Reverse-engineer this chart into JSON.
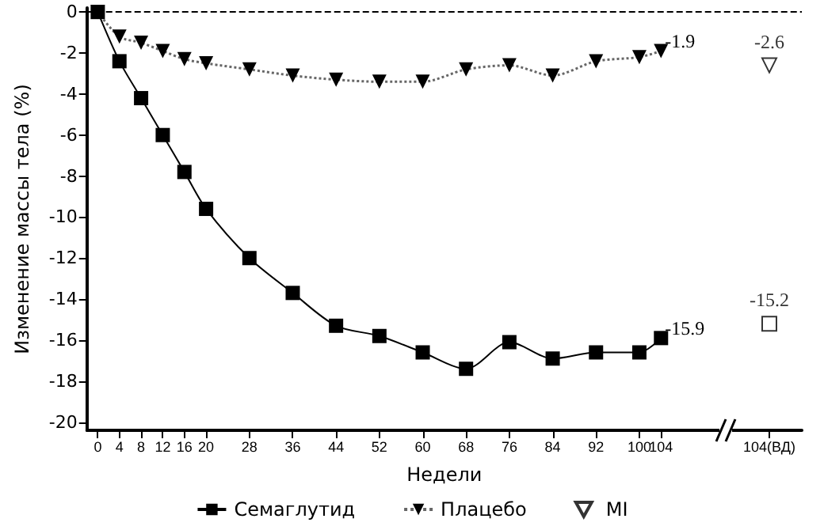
{
  "chart_data": {
    "type": "line",
    "xlabel": "Недели",
    "ylabel": "Изменение массы тела (%)",
    "categories": [
      "0",
      "4",
      "8",
      "12",
      "16",
      "20",
      null,
      "28",
      null,
      "36",
      null,
      "44",
      null,
      "52",
      null,
      "60",
      null,
      "68",
      null,
      "76",
      null,
      "84",
      null,
      "92",
      null,
      "100",
      "104",
      null,
      null,
      null,
      null,
      "104(ВД)",
      null
    ],
    "series": [
      {
        "name": "Семаглутид",
        "color": "#000000",
        "marker": "square",
        "line_style": "solid",
        "values": [
          0,
          -2.4,
          -4.2,
          -6.0,
          -7.8,
          -9.6,
          null,
          -12.0,
          null,
          -13.7,
          null,
          -15.3,
          null,
          -15.8,
          null,
          -16.6,
          null,
          -17.4,
          null,
          -16.1,
          null,
          -16.9,
          null,
          -16.6,
          null,
          -16.6,
          -15.9,
          null,
          null,
          null,
          null,
          null,
          null
        ],
        "value_labels": [
          null,
          null,
          null,
          null,
          null,
          null,
          null,
          null,
          null,
          null,
          null,
          null,
          null,
          null,
          null,
          null,
          null,
          null,
          null,
          null,
          null,
          null,
          null,
          null,
          null,
          null,
          "-15.9",
          null,
          null,
          null,
          null,
          null,
          null
        ]
      },
      {
        "name": "Плацебо",
        "color": "#000000",
        "marker": "triangle",
        "line_style": "dotted",
        "values": [
          0,
          -1.2,
          -1.5,
          -1.9,
          -2.3,
          -2.5,
          null,
          -2.8,
          null,
          -3.1,
          null,
          -3.3,
          null,
          -3.4,
          null,
          -3.4,
          null,
          -2.8,
          null,
          -2.6,
          null,
          -3.1,
          null,
          -2.4,
          null,
          -2.2,
          -1.9,
          null,
          null,
          null,
          null,
          null,
          null
        ],
        "value_labels": [
          null,
          null,
          null,
          null,
          null,
          null,
          null,
          null,
          null,
          null,
          null,
          null,
          null,
          null,
          null,
          null,
          null,
          null,
          null,
          null,
          null,
          null,
          null,
          null,
          null,
          null,
          "-1.9",
          null,
          null,
          null,
          null,
          null,
          null
        ]
      },
      {
        "type": "scatter",
        "color": "#000000",
        "marker": "square",
        "x": [
          "104(ВД)"
        ],
        "values": [
          -15.2
        ],
        "value_labels": [
          "-15.2"
        ]
      },
      {
        "type": "scatter",
        "name": "MI",
        "color": "#000000",
        "marker": "triangle",
        "x": [
          "104(ВД)"
        ],
        "values": [
          -2.6
        ],
        "value_labels": [
          "-2.6"
        ]
      }
    ],
    "ylim": [
      -20.4,
      0.2
    ],
    "yticks": [
      -20,
      -18,
      -16,
      -14,
      -12,
      -10,
      -8,
      -6,
      -4,
      -2,
      0
    ],
    "ref_lines": [
      {
        "axis": "y",
        "value": 0,
        "line_style": "dashed"
      }
    ],
    "grid": false,
    "legend": "bottom"
  }
}
